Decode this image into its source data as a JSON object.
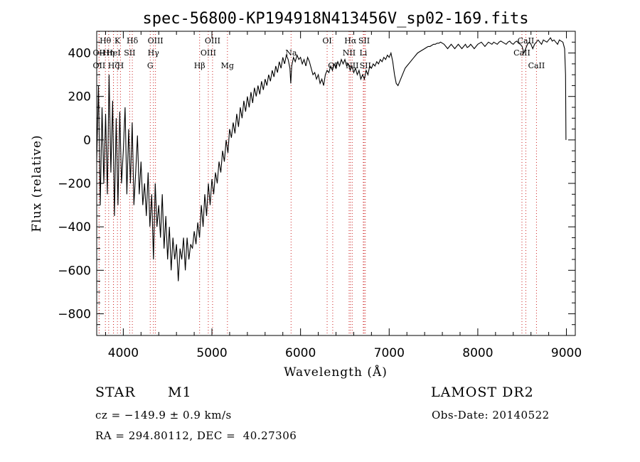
{
  "chart_data": {
    "type": "line",
    "title": "spec-56800-KP194918N413456V_sp02-169.fits",
    "xlabel": "Wavelength (Å)",
    "ylabel": "Flux (relative)",
    "xlim": [
      3700,
      9100
    ],
    "ylim": [
      -900,
      500
    ],
    "xticks": [
      4000,
      5000,
      6000,
      7000,
      8000,
      9000
    ],
    "yticks": [
      -800,
      -600,
      -400,
      -200,
      0,
      200,
      400
    ],
    "grid": false,
    "series": [
      {
        "points": [
          [
            3700,
            -100
          ],
          [
            3720,
            250
          ],
          [
            3740,
            -300
          ],
          [
            3760,
            150
          ],
          [
            3780,
            -200
          ],
          [
            3800,
            120
          ],
          [
            3820,
            -250
          ],
          [
            3840,
            300
          ],
          [
            3860,
            -150
          ],
          [
            3880,
            180
          ],
          [
            3900,
            -350
          ],
          [
            3920,
            100
          ],
          [
            3940,
            -300
          ],
          [
            3960,
            130
          ],
          [
            3980,
            -200
          ],
          [
            4000,
            -50
          ],
          [
            4020,
            150
          ],
          [
            4040,
            -250
          ],
          [
            4060,
            50
          ],
          [
            4080,
            -200
          ],
          [
            4100,
            80
          ],
          [
            4120,
            -300
          ],
          [
            4140,
            -150
          ],
          [
            4160,
            20
          ],
          [
            4180,
            -250
          ],
          [
            4200,
            -100
          ],
          [
            4220,
            -300
          ],
          [
            4240,
            -200
          ],
          [
            4260,
            -350
          ],
          [
            4280,
            -150
          ],
          [
            4300,
            -400
          ],
          [
            4320,
            -250
          ],
          [
            4340,
            -550
          ],
          [
            4360,
            -200
          ],
          [
            4380,
            -400
          ],
          [
            4400,
            -300
          ],
          [
            4420,
            -450
          ],
          [
            4440,
            -250
          ],
          [
            4460,
            -500
          ],
          [
            4480,
            -350
          ],
          [
            4500,
            -550
          ],
          [
            4520,
            -400
          ],
          [
            4540,
            -600
          ],
          [
            4560,
            -450
          ],
          [
            4580,
            -550
          ],
          [
            4600,
            -480
          ],
          [
            4620,
            -650
          ],
          [
            4640,
            -500
          ],
          [
            4660,
            -550
          ],
          [
            4680,
            -450
          ],
          [
            4700,
            -600
          ],
          [
            4720,
            -450
          ],
          [
            4740,
            -550
          ],
          [
            4760,
            -480
          ],
          [
            4780,
            -500
          ],
          [
            4800,
            -420
          ],
          [
            4820,
            -480
          ],
          [
            4840,
            -380
          ],
          [
            4860,
            -450
          ],
          [
            4880,
            -300
          ],
          [
            4900,
            -400
          ],
          [
            4920,
            -250
          ],
          [
            4940,
            -350
          ],
          [
            4960,
            -200
          ],
          [
            4980,
            -300
          ],
          [
            5000,
            -180
          ],
          [
            5020,
            -250
          ],
          [
            5040,
            -150
          ],
          [
            5060,
            -200
          ],
          [
            5080,
            -100
          ],
          [
            5100,
            -150
          ],
          [
            5120,
            -50
          ],
          [
            5140,
            -100
          ],
          [
            5160,
            0
          ],
          [
            5180,
            -60
          ],
          [
            5200,
            50
          ],
          [
            5220,
            10
          ],
          [
            5240,
            80
          ],
          [
            5260,
            30
          ],
          [
            5280,
            120
          ],
          [
            5300,
            60
          ],
          [
            5320,
            150
          ],
          [
            5340,
            100
          ],
          [
            5360,
            180
          ],
          [
            5380,
            130
          ],
          [
            5400,
            200
          ],
          [
            5420,
            150
          ],
          [
            5440,
            220
          ],
          [
            5460,
            170
          ],
          [
            5480,
            240
          ],
          [
            5500,
            200
          ],
          [
            5520,
            250
          ],
          [
            5540,
            210
          ],
          [
            5560,
            270
          ],
          [
            5580,
            230
          ],
          [
            5600,
            280
          ],
          [
            5620,
            250
          ],
          [
            5640,
            300
          ],
          [
            5660,
            270
          ],
          [
            5680,
            320
          ],
          [
            5700,
            290
          ],
          [
            5720,
            340
          ],
          [
            5740,
            310
          ],
          [
            5760,
            360
          ],
          [
            5780,
            330
          ],
          [
            5800,
            380
          ],
          [
            5820,
            350
          ],
          [
            5840,
            390
          ],
          [
            5860,
            370
          ],
          [
            5880,
            330
          ],
          [
            5890,
            260
          ],
          [
            5900,
            340
          ],
          [
            5920,
            380
          ],
          [
            5940,
            360
          ],
          [
            5960,
            390
          ],
          [
            5980,
            370
          ],
          [
            6000,
            380
          ],
          [
            6020,
            350
          ],
          [
            6040,
            370
          ],
          [
            6060,
            340
          ],
          [
            6080,
            380
          ],
          [
            6100,
            360
          ],
          [
            6120,
            330
          ],
          [
            6140,
            300
          ],
          [
            6160,
            310
          ],
          [
            6180,
            280
          ],
          [
            6200,
            300
          ],
          [
            6220,
            260
          ],
          [
            6240,
            280
          ],
          [
            6260,
            250
          ],
          [
            6280,
            300
          ],
          [
            6300,
            320
          ],
          [
            6320,
            310
          ],
          [
            6340,
            340
          ],
          [
            6360,
            320
          ],
          [
            6380,
            350
          ],
          [
            6400,
            330
          ],
          [
            6420,
            360
          ],
          [
            6440,
            340
          ],
          [
            6460,
            370
          ],
          [
            6480,
            350
          ],
          [
            6500,
            370
          ],
          [
            6520,
            340
          ],
          [
            6540,
            350
          ],
          [
            6560,
            320
          ],
          [
            6580,
            340
          ],
          [
            6600,
            310
          ],
          [
            6620,
            330
          ],
          [
            6640,
            300
          ],
          [
            6660,
            320
          ],
          [
            6680,
            280
          ],
          [
            6700,
            300
          ],
          [
            6720,
            280
          ],
          [
            6740,
            320
          ],
          [
            6760,
            300
          ],
          [
            6780,
            340
          ],
          [
            6800,
            330
          ],
          [
            6820,
            350
          ],
          [
            6840,
            340
          ],
          [
            6860,
            360
          ],
          [
            6880,
            350
          ],
          [
            6900,
            370
          ],
          [
            6920,
            360
          ],
          [
            6940,
            380
          ],
          [
            6960,
            370
          ],
          [
            6980,
            390
          ],
          [
            7000,
            380
          ],
          [
            7020,
            400
          ],
          [
            7040,
            360
          ],
          [
            7060,
            300
          ],
          [
            7080,
            260
          ],
          [
            7100,
            250
          ],
          [
            7120,
            270
          ],
          [
            7140,
            290
          ],
          [
            7160,
            310
          ],
          [
            7180,
            330
          ],
          [
            7200,
            340
          ],
          [
            7220,
            350
          ],
          [
            7240,
            360
          ],
          [
            7260,
            370
          ],
          [
            7280,
            380
          ],
          [
            7300,
            390
          ],
          [
            7320,
            400
          ],
          [
            7340,
            405
          ],
          [
            7360,
            410
          ],
          [
            7380,
            415
          ],
          [
            7400,
            420
          ],
          [
            7420,
            425
          ],
          [
            7440,
            430
          ],
          [
            7460,
            430
          ],
          [
            7480,
            435
          ],
          [
            7500,
            440
          ],
          [
            7520,
            440
          ],
          [
            7540,
            445
          ],
          [
            7560,
            445
          ],
          [
            7580,
            450
          ],
          [
            7600,
            445
          ],
          [
            7620,
            440
          ],
          [
            7640,
            430
          ],
          [
            7660,
            420
          ],
          [
            7680,
            430
          ],
          [
            7700,
            440
          ],
          [
            7720,
            430
          ],
          [
            7740,
            420
          ],
          [
            7760,
            430
          ],
          [
            7780,
            440
          ],
          [
            7800,
            430
          ],
          [
            7820,
            420
          ],
          [
            7840,
            430
          ],
          [
            7860,
            440
          ],
          [
            7880,
            425
          ],
          [
            7900,
            430
          ],
          [
            7920,
            440
          ],
          [
            7940,
            430
          ],
          [
            7960,
            420
          ],
          [
            7980,
            430
          ],
          [
            8000,
            440
          ],
          [
            8020,
            445
          ],
          [
            8040,
            450
          ],
          [
            8060,
            440
          ],
          [
            8080,
            430
          ],
          [
            8100,
            440
          ],
          [
            8120,
            450
          ],
          [
            8140,
            445
          ],
          [
            8160,
            440
          ],
          [
            8180,
            450
          ],
          [
            8200,
            445
          ],
          [
            8220,
            440
          ],
          [
            8240,
            450
          ],
          [
            8260,
            455
          ],
          [
            8280,
            450
          ],
          [
            8300,
            445
          ],
          [
            8320,
            440
          ],
          [
            8340,
            450
          ],
          [
            8360,
            455
          ],
          [
            8380,
            445
          ],
          [
            8400,
            440
          ],
          [
            8420,
            450
          ],
          [
            8440,
            455
          ],
          [
            8460,
            445
          ],
          [
            8480,
            440
          ],
          [
            8500,
            430
          ],
          [
            8520,
            400
          ],
          [
            8540,
            420
          ],
          [
            8560,
            440
          ],
          [
            8580,
            450
          ],
          [
            8600,
            440
          ],
          [
            8620,
            420
          ],
          [
            8640,
            440
          ],
          [
            8660,
            450
          ],
          [
            8680,
            460
          ],
          [
            8700,
            450
          ],
          [
            8720,
            440
          ],
          [
            8740,
            460
          ],
          [
            8760,
            455
          ],
          [
            8780,
            450
          ],
          [
            8800,
            460
          ],
          [
            8820,
            470
          ],
          [
            8840,
            455
          ],
          [
            8860,
            460
          ],
          [
            8880,
            450
          ],
          [
            8900,
            440
          ],
          [
            8920,
            460
          ],
          [
            8940,
            455
          ],
          [
            8960,
            450
          ],
          [
            8980,
            420
          ],
          [
            8990,
            300
          ],
          [
            8995,
            0
          ]
        ]
      }
    ],
    "line_markers": [
      {
        "label": "Hθ",
        "wavelength": 3798,
        "row": 0
      },
      {
        "label": "K",
        "wavelength": 3934,
        "row": 0
      },
      {
        "label": "Hδ",
        "wavelength": 4102,
        "row": 0
      },
      {
        "label": "OIII",
        "wavelength": 4363,
        "row": 0
      },
      {
        "label": "OIII",
        "wavelength": 5007,
        "row": 0
      },
      {
        "label": "OI",
        "wavelength": 6300,
        "row": 0
      },
      {
        "label": "Hα",
        "wavelength": 6563,
        "row": 0
      },
      {
        "label": "SII",
        "wavelength": 6717,
        "row": 0
      },
      {
        "label": "CaII",
        "wavelength": 8542,
        "row": 0
      },
      {
        "label": "OII",
        "wavelength": 3727,
        "row": 1
      },
      {
        "label": "Hη",
        "wavelength": 3835,
        "row": 1
      },
      {
        "label": "HeI",
        "wavelength": 3889,
        "row": 1
      },
      {
        "label": "SII",
        "wavelength": 4072,
        "row": 1
      },
      {
        "label": "Hγ",
        "wavelength": 4340,
        "row": 1
      },
      {
        "label": "OIII",
        "wavelength": 4959,
        "row": 1
      },
      {
        "label": "Na",
        "wavelength": 5893,
        "row": 1
      },
      {
        "label": "NII",
        "wavelength": 6548,
        "row": 1
      },
      {
        "label": "Li",
        "wavelength": 6708,
        "row": 1
      },
      {
        "label": "CaII",
        "wavelength": 8498,
        "row": 1
      },
      {
        "label": "OII",
        "wavelength": 3727,
        "row": 2
      },
      {
        "label": "Hζ",
        "wavelength": 3889,
        "row": 2
      },
      {
        "label": "H",
        "wavelength": 3968,
        "row": 2
      },
      {
        "label": "G",
        "wavelength": 4304,
        "row": 2
      },
      {
        "label": "Hβ",
        "wavelength": 4861,
        "row": 2
      },
      {
        "label": "Mg",
        "wavelength": 5175,
        "row": 2
      },
      {
        "label": "OI",
        "wavelength": 6363,
        "row": 2
      },
      {
        "label": "NII",
        "wavelength": 6583,
        "row": 2
      },
      {
        "label": "SII",
        "wavelength": 6731,
        "row": 2
      },
      {
        "label": "CaII",
        "wavelength": 8662,
        "row": 2
      }
    ]
  },
  "info": {
    "object_class": "STAR",
    "subclass": "M1",
    "survey": "LAMOST DR2",
    "redshift": "cz = −149.9 ± 0.9 km/s",
    "obs_date": "Obs-Date: 20140522",
    "coords": "RA = 294.80112, DEC =  40.27306"
  }
}
